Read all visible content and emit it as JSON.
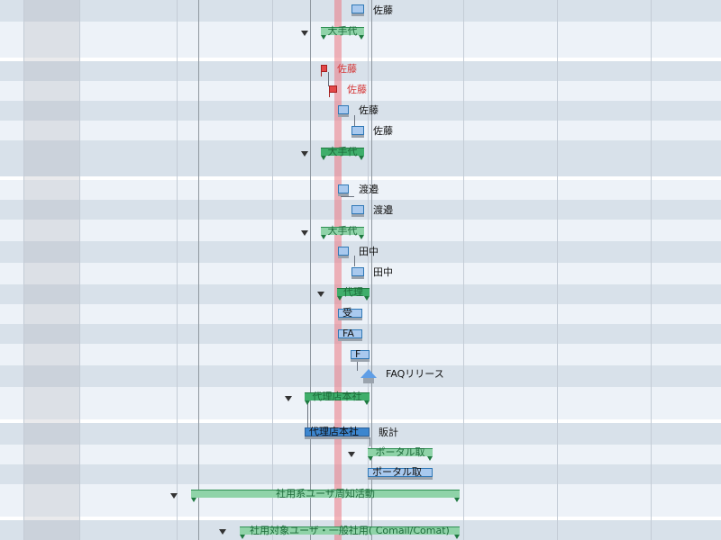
{
  "rows": {
    "r1": {
      "name": "佐藤"
    },
    "r2": {
      "summary": "大手代"
    },
    "r3": {
      "name": "佐藤"
    },
    "r4": {
      "name": "佐藤"
    },
    "r5": {
      "name": "佐藤"
    },
    "r6": {
      "name": "佐藤"
    },
    "r7": {
      "summary": "大手代"
    },
    "r8": {
      "name": "渡邉"
    },
    "r9": {
      "name": "渡邉"
    },
    "r10": {
      "summary": "大手代"
    },
    "r11": {
      "name": "田中"
    },
    "r12": {
      "name": "田中"
    },
    "r13": {
      "summary": "代理"
    },
    "r14": {
      "bar": "受"
    },
    "r15": {
      "bar": "FA"
    },
    "r16": {
      "bar": "F"
    },
    "r17": {
      "milestone": "FAQリリース"
    },
    "r18": {
      "summary": "代理店本社"
    },
    "r19": {
      "bar": "代理店本社",
      "name": "販計"
    },
    "r20": {
      "summary": "ポータル取"
    },
    "r21": {
      "bar": "ポータル取"
    },
    "r22": {
      "summary": "社用系ユーザ周知活動"
    },
    "r23": {
      "summary": "社用対象ユーザ・一般社用( Comail/Comat)"
    }
  },
  "colors": {
    "task": "#a9c9ee",
    "summary": "#3fae6b",
    "today": "#eb7882",
    "flag": "#e34848"
  }
}
